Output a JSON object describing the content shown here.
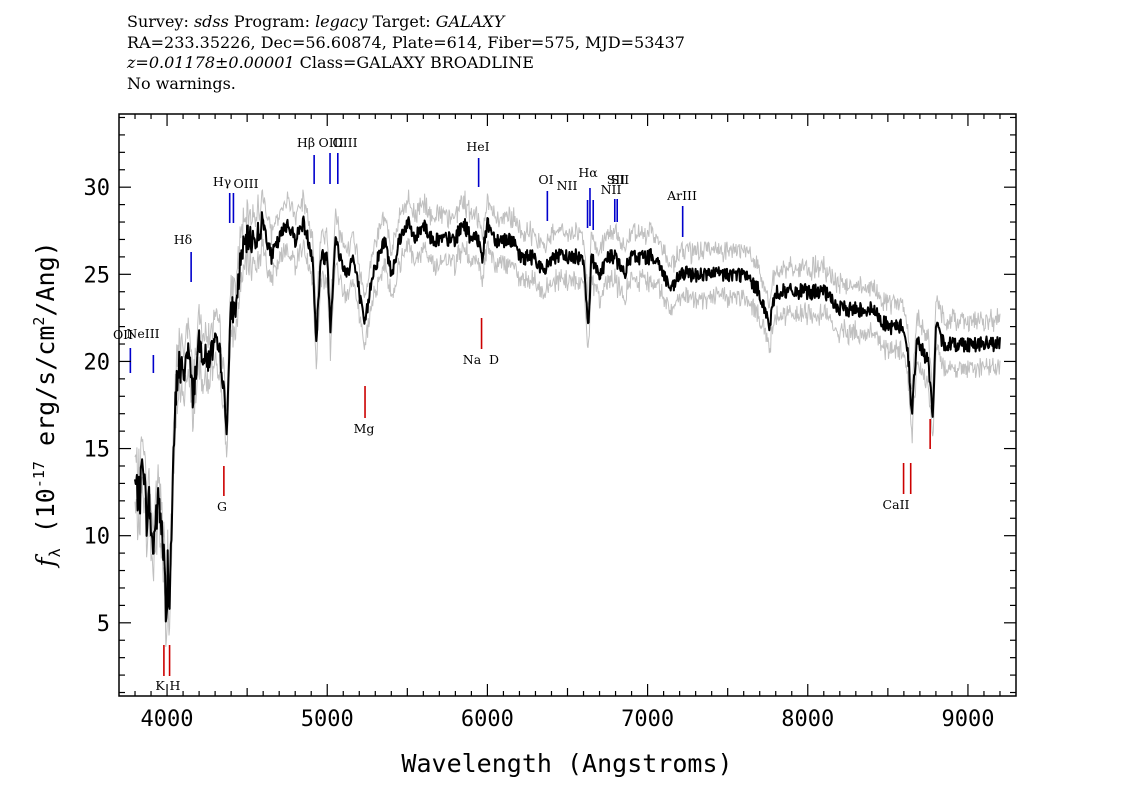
{
  "header": {
    "survey_label": "Survey:",
    "survey": "sdss",
    "program_label": "Program:",
    "program": "legacy",
    "target_label": "Target:",
    "target": "GALAXY",
    "line2": "RA=233.35226, Dec=56.60874, Plate=614, Fiber=575, MJD=53437",
    "redshift": "z=0.01178±0.00001",
    "class": "Class=GALAXY BROADLINE",
    "warnings": "No warnings."
  },
  "chart_data": {
    "type": "line",
    "xlabel": "Wavelength (Angstroms)",
    "ylabel": "f_λ (10^-17 erg/s/cm^2/Ang)",
    "xlim": [
      3700,
      9300
    ],
    "ylim": [
      0.8,
      34.2
    ],
    "xticks": [
      4000,
      5000,
      6000,
      7000,
      8000,
      9000
    ],
    "yticks": [
      5,
      10,
      15,
      20,
      25,
      30
    ],
    "grid": false,
    "legend": "none",
    "colors": {
      "flux": "#000000",
      "error_band": "#c0c0c0",
      "emission": "#0000cc",
      "absorption": "#cc0000"
    },
    "series": [
      {
        "x": [
          3800,
          3830,
          3850,
          3870,
          3890,
          3910,
          3930,
          3950,
          3970,
          3985,
          3995,
          4005,
          4015,
          4030,
          4050,
          4070,
          4100,
          4130,
          4160,
          4200,
          4250,
          4300,
          4340,
          4370,
          4400,
          4430,
          4460,
          4500,
          4550,
          4600,
          4650,
          4700,
          4750,
          4800,
          4850,
          4880,
          4910,
          4930,
          4960,
          5000,
          5020,
          5050,
          5080,
          5120,
          5160,
          5200,
          5230,
          5250,
          5280,
          5320,
          5360,
          5400,
          5450,
          5500,
          5550,
          5600,
          5650,
          5700,
          5750,
          5800,
          5850,
          5900,
          5950,
          5970,
          6000,
          6050,
          6100,
          6150,
          6200,
          6250,
          6300,
          6350,
          6400,
          6450,
          6500,
          6550,
          6600,
          6630,
          6650,
          6700,
          6750,
          6800,
          6850,
          6900,
          6950,
          7000,
          7050,
          7100,
          7150,
          7200,
          7250,
          7300,
          7400,
          7500,
          7600,
          7700,
          7760,
          7800,
          7900,
          8000,
          8100,
          8200,
          8300,
          8400,
          8500,
          8560,
          8600,
          8630,
          8650,
          8680,
          8700,
          8750,
          8780,
          8800,
          8850,
          8900,
          9000,
          9100,
          9150,
          9200
        ],
        "y": [
          13,
          12,
          15,
          11,
          12,
          9,
          11,
          12,
          10,
          8,
          4,
          9,
          6,
          11,
          17,
          20,
          19,
          21,
          18,
          21,
          20,
          21,
          20,
          16,
          23,
          23,
          26,
          27,
          27,
          28,
          26,
          27,
          28,
          27,
          28,
          27,
          26,
          21,
          26,
          26,
          22,
          27,
          26,
          25,
          26,
          24,
          22,
          23,
          25,
          26,
          27,
          25,
          27,
          28,
          27,
          28,
          27,
          27,
          27,
          27,
          28,
          27,
          27,
          26,
          28,
          27,
          27,
          27,
          26,
          26,
          26,
          25,
          26,
          26,
          26,
          26,
          26,
          22,
          26,
          25,
          26,
          26,
          25,
          26,
          26,
          26,
          26,
          25,
          24,
          25,
          25,
          25,
          25,
          25,
          25,
          24,
          22,
          24,
          24,
          24,
          24,
          23,
          23,
          23,
          22,
          22,
          22,
          20,
          17,
          21,
          21,
          20,
          17,
          22,
          21,
          21,
          21,
          21,
          21,
          21
        ]
      }
    ],
    "emission_lines": [
      {
        "label": "OII",
        "x": 3727
      },
      {
        "label": "NeIII",
        "x": 3869
      },
      {
        "label": "Hδ",
        "x": 4102
      },
      {
        "label": "Hγ",
        "x": 4340
      },
      {
        "label": "OIII",
        "x": 4363
      },
      {
        "label": "Hβ",
        "x": 4861
      },
      {
        "label": "OIII",
        "x": 4959
      },
      {
        "label": "OIII",
        "x": 5007
      },
      {
        "label": "HeI",
        "x": 5876
      },
      {
        "label": "OI",
        "x": 6300
      },
      {
        "label": "NII",
        "x": 6548
      },
      {
        "label": "Hα",
        "x": 6563
      },
      {
        "label": "NII",
        "x": 6583
      },
      {
        "label": "SII",
        "x": 6716
      },
      {
        "label": "SII",
        "x": 6731
      },
      {
        "label": "ArIII",
        "x": 7135
      }
    ],
    "absorption_lines": [
      {
        "label": "K",
        "x": 3934
      },
      {
        "label": "H",
        "x": 3969
      },
      {
        "label": "G",
        "x": 4304
      },
      {
        "label": "Mg",
        "x": 5175
      },
      {
        "label": "Na",
        "x": 5894
      },
      {
        "label": "D",
        "x": 5894
      },
      {
        "label": "CaII",
        "x": 8498
      },
      {
        "label": "CaII",
        "x": 8542
      },
      {
        "label": "CaII",
        "x": 8662
      }
    ]
  }
}
